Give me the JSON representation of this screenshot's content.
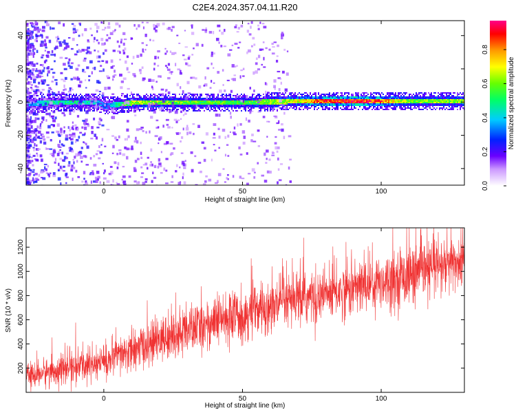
{
  "title": "C2E4.2024.357.04.11.R20",
  "chart_data": [
    {
      "type": "heatmap",
      "xlabel": "Height of straight line (km)",
      "ylabel": "Frequency (Hz)",
      "xlim": [
        -28,
        130
      ],
      "ylim": [
        -50,
        49
      ],
      "xticks": [
        0,
        50,
        100
      ],
      "yticks": [
        -40,
        -20,
        0,
        20,
        40
      ],
      "colorbar": {
        "label": "Normalized spectral amplitude",
        "range": [
          0.0,
          0.97
        ],
        "ticks": [
          0.0,
          0.2,
          0.4,
          0.6,
          0.8
        ],
        "tick_labels": [
          "0.0",
          "0.2",
          "0.4",
          "0.6",
          "0.8"
        ]
      },
      "ridge": {
        "x": [
          -28,
          -20,
          -10,
          -2,
          0,
          5,
          10,
          30,
          50,
          70,
          80,
          90,
          100,
          110,
          130
        ],
        "frequency": [
          -1,
          0,
          0,
          0,
          -2,
          -1,
          0,
          0,
          0,
          1,
          1,
          1,
          1,
          1,
          1
        ],
        "amplitude": [
          0.35,
          0.45,
          0.5,
          0.4,
          0.3,
          0.5,
          0.65,
          0.6,
          0.55,
          0.7,
          0.9,
          0.95,
          0.85,
          0.6,
          0.65
        ]
      }
    },
    {
      "type": "line",
      "xlabel": "Height of straight line (km)",
      "ylabel": "SNR (10 * v/v)",
      "xlim": [
        -28,
        130
      ],
      "ylim": [
        0,
        1360
      ],
      "xticks": [
        0,
        50,
        100
      ],
      "yticks": [
        200,
        400,
        600,
        800,
        1000,
        1200
      ],
      "color": "#f03232",
      "series": [
        {
          "x": [
            -28,
            -20,
            -10,
            0,
            10,
            20,
            30,
            40,
            50,
            60,
            70,
            80,
            90,
            100,
            110,
            120,
            130
          ],
          "trend": [
            130,
            170,
            210,
            250,
            340,
            430,
            510,
            580,
            640,
            700,
            760,
            810,
            860,
            920,
            970,
            1030,
            1080
          ],
          "spread": [
            90,
            110,
            120,
            130,
            150,
            170,
            180,
            190,
            200,
            200,
            200,
            200,
            210,
            210,
            220,
            220,
            220
          ]
        }
      ]
    }
  ]
}
